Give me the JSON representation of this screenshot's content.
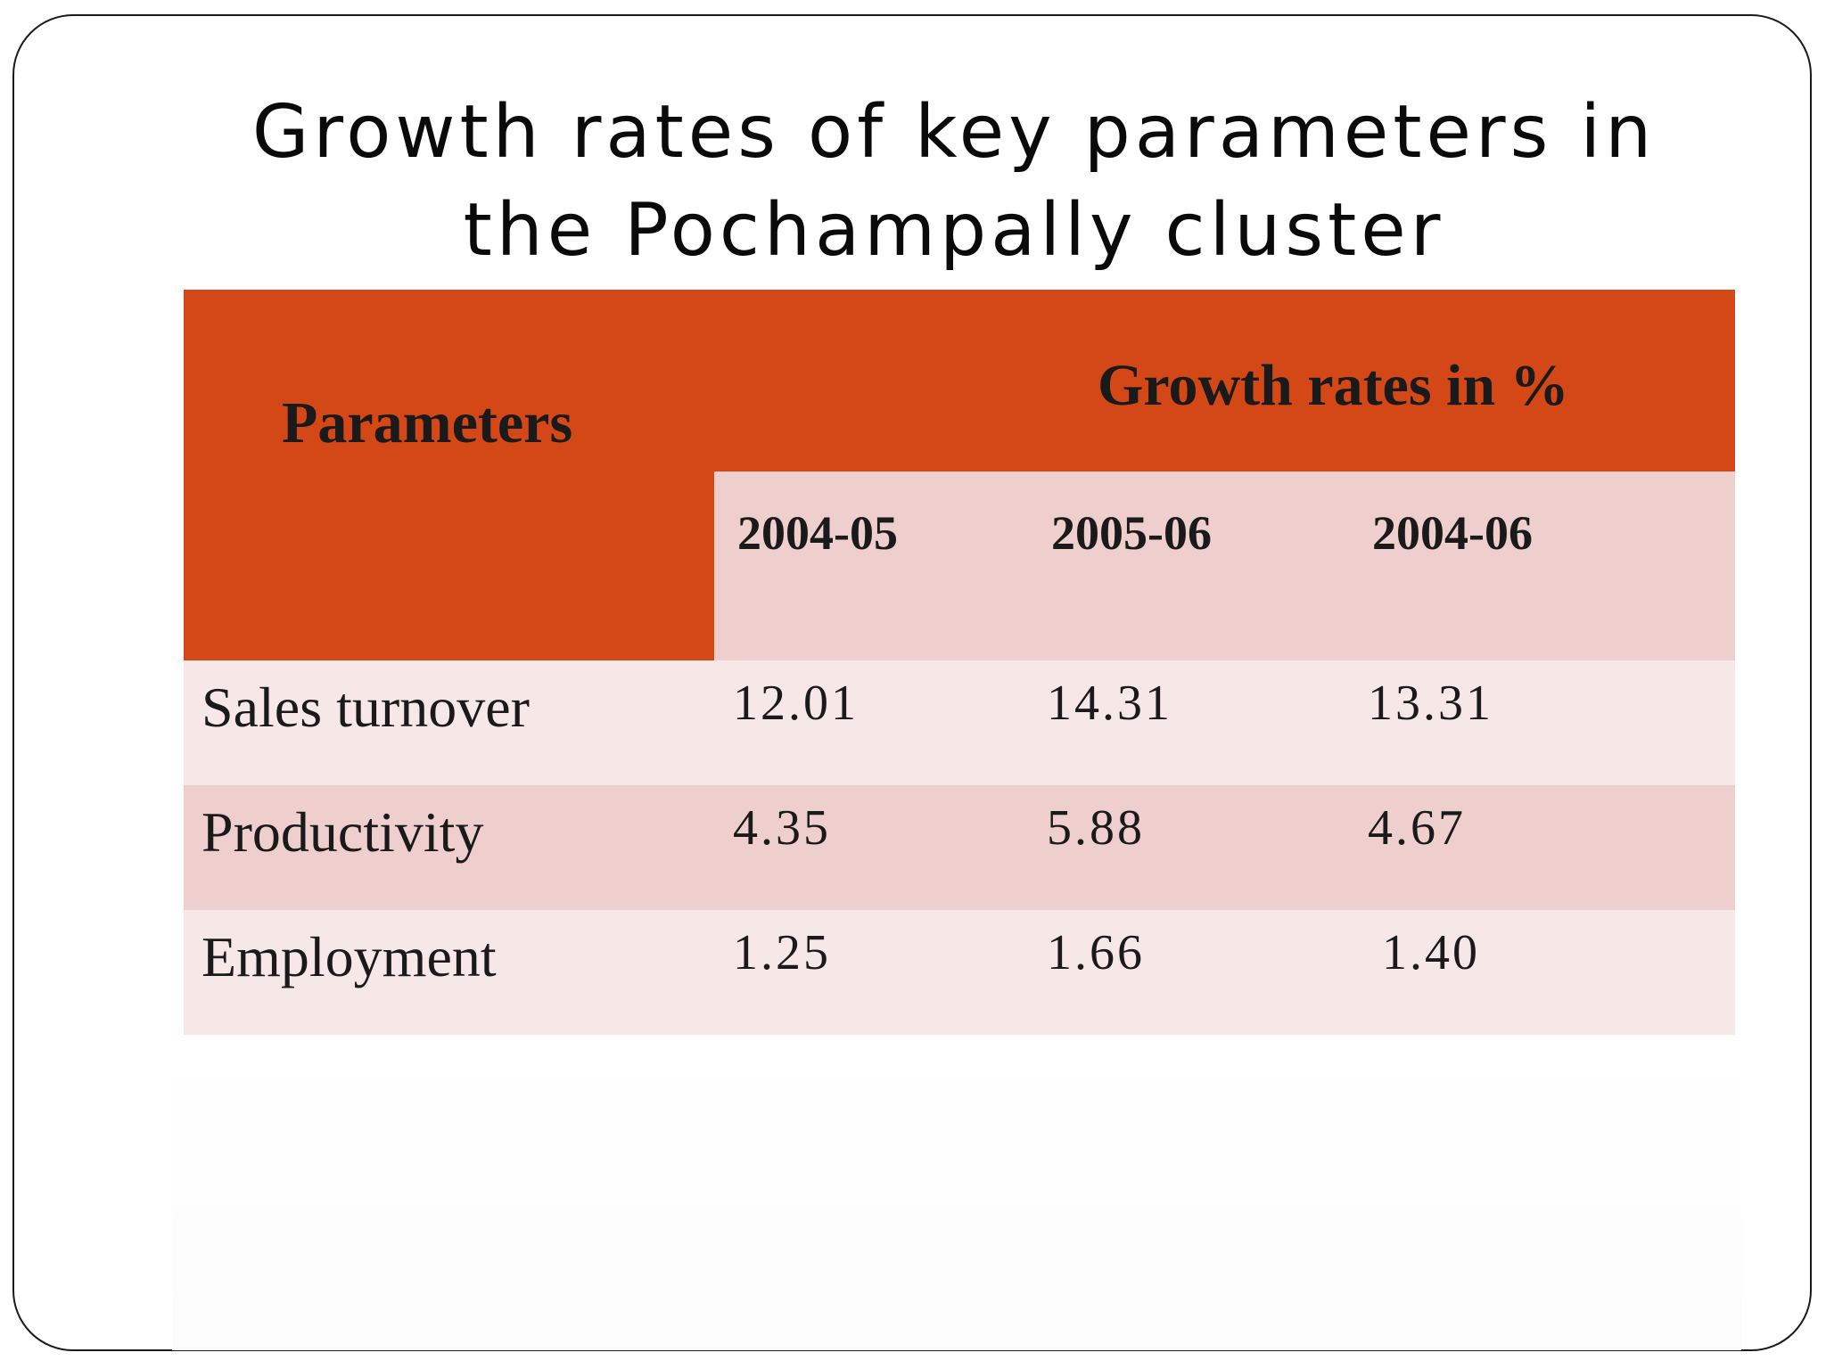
{
  "slide": {
    "title_line1": "Growth rates of key parameters in",
    "title_line2": "the Pochampally cluster"
  },
  "table": {
    "header_parameters": "Parameters",
    "header_growth": "Growth rates in %",
    "years": [
      "2004-05",
      "2005-06",
      "2004-06"
    ],
    "rows": [
      {
        "label": "Sales turnover",
        "values": [
          "12.01",
          "14.31",
          "13.31"
        ]
      },
      {
        "label": "Productivity",
        "values": [
          "4.35",
          "5.88",
          "4.67"
        ]
      },
      {
        "label": "Employment",
        "values": [
          "1.25",
          "1.66",
          "1.40"
        ]
      }
    ]
  },
  "colors": {
    "header": "#d44818",
    "row_dark": "#efcece",
    "row_light": "#f7e8e8"
  }
}
